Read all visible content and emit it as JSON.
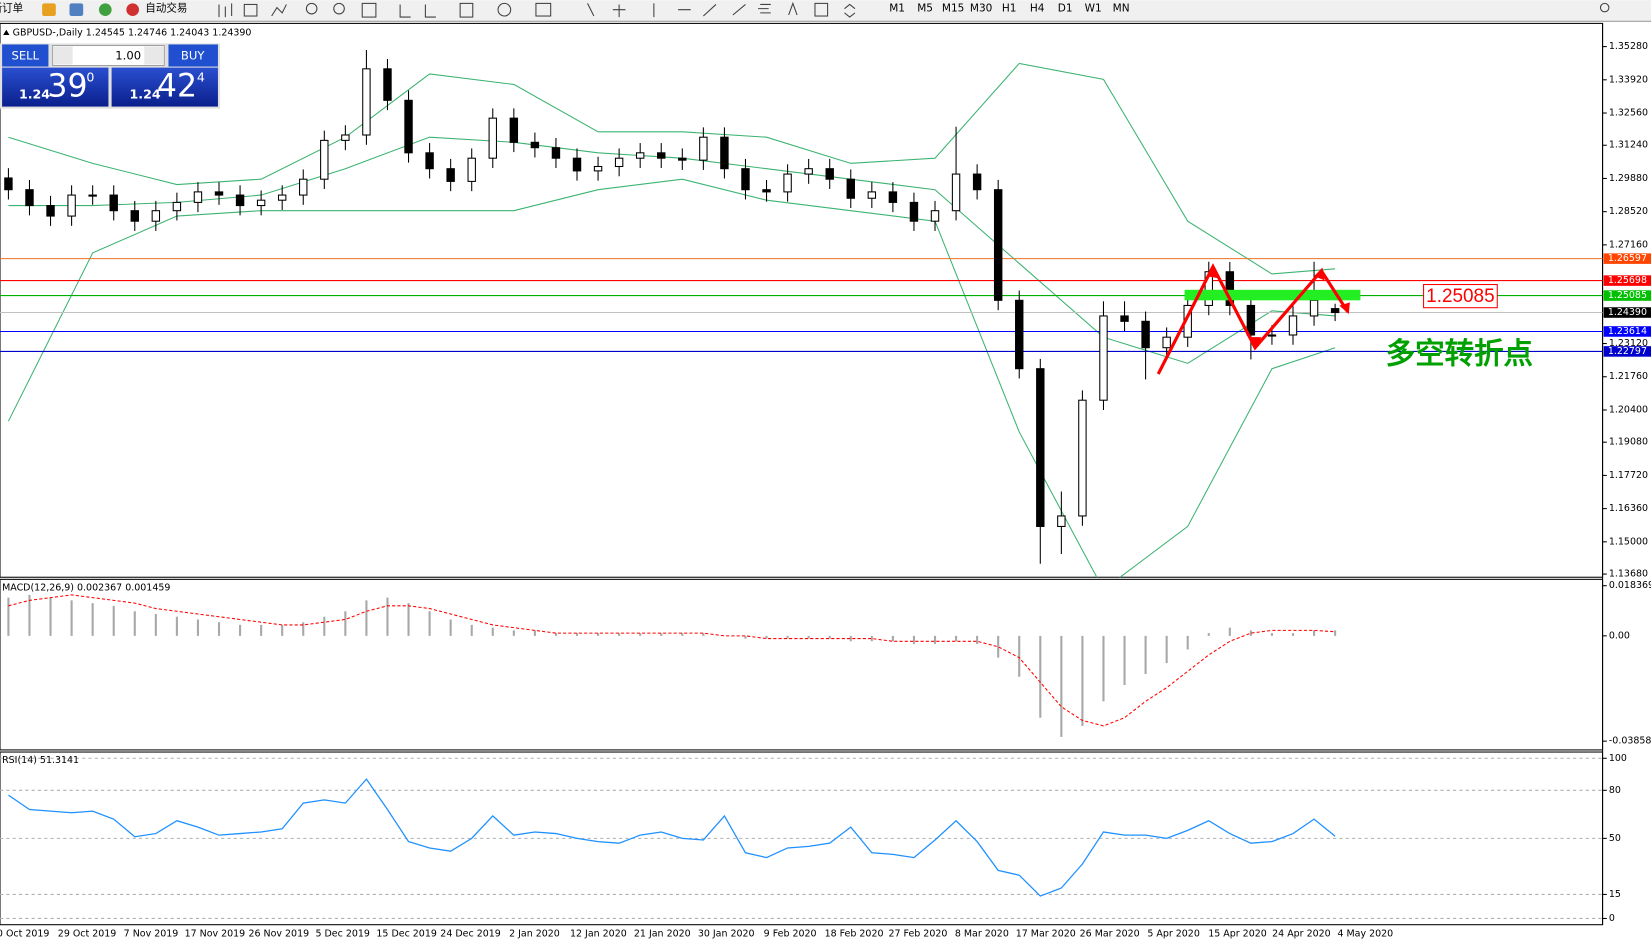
{
  "toolbar": {
    "items": [
      "新订单",
      "自动交易"
    ],
    "timeframes": [
      "M1",
      "M5",
      "M15",
      "M30",
      "H1",
      "H4",
      "D1",
      "W1",
      "MN"
    ]
  },
  "trade_panel": {
    "sell_label": "SELL",
    "lot": "1.00",
    "buy_label": "BUY",
    "sell_price": {
      "big": "1.24",
      "pips": "39",
      "point": "0"
    },
    "buy_price": {
      "big": "1.24",
      "pips": "42",
      "point": "4"
    }
  },
  "chart_data": [
    {
      "type": "candlestick",
      "title": "GBPUSD-,Daily  1.24545 1.24746 1.24043 1.24390",
      "open": [
        1.299,
        1.2942,
        1.2877,
        1.2834,
        1.292,
        1.292,
        1.2856,
        1.2813,
        1.2856,
        1.289,
        1.2933,
        1.292,
        1.2877,
        1.2899,
        1.292,
        1.2985,
        1.3144,
        1.3166,
        1.3437,
        1.3308,
        1.3093,
        1.3028,
        1.2976,
        1.3071,
        1.3235,
        1.3136,
        1.3114,
        1.3071,
        1.3019,
        1.3037,
        1.3071,
        1.3093,
        1.3071,
        1.3063,
        1.3157,
        1.3028,
        1.2942,
        1.2933,
        1.3006,
        1.3028,
        1.2985,
        1.2907,
        1.2933,
        1.289,
        1.2813,
        1.2856,
        1.3006,
        1.2942,
        1.2489,
        1.2209,
        1.1563,
        1.1606,
        1.208,
        1.2425,
        1.2403,
        1.2295,
        1.2338,
        1.2468,
        1.2606,
        1.2468,
        1.2347,
        1.2347,
        1.2425,
        1.2455
      ],
      "high": [
        1.303,
        1.2982,
        1.2917,
        1.296,
        1.296,
        1.296,
        1.2896,
        1.2896,
        1.293,
        1.2973,
        1.2973,
        1.296,
        1.2939,
        1.296,
        1.3025,
        1.3184,
        1.3206,
        1.3514,
        1.3477,
        1.3348,
        1.3133,
        1.3068,
        1.3111,
        1.3275,
        1.3275,
        1.3176,
        1.3154,
        1.3111,
        1.3077,
        1.3111,
        1.3133,
        1.3133,
        1.3111,
        1.3197,
        1.3197,
        1.3068,
        1.2982,
        1.3046,
        1.3068,
        1.3068,
        1.3025,
        1.2973,
        1.2973,
        1.293,
        1.2896,
        1.32,
        1.3046,
        1.2982,
        1.2529,
        1.2249,
        1.1706,
        1.212,
        1.2485,
        1.2485,
        1.2443,
        1.2378,
        1.2508,
        1.2647,
        1.2646,
        1.2508,
        1.2387,
        1.2465,
        1.2647,
        1.2475
      ],
      "low": [
        1.2902,
        1.2837,
        1.2794,
        1.2794,
        1.288,
        1.2816,
        1.2773,
        1.2773,
        1.2816,
        1.285,
        1.288,
        1.2837,
        1.2837,
        1.2859,
        1.288,
        1.2945,
        1.3104,
        1.3126,
        1.3268,
        1.3053,
        1.2988,
        1.2936,
        1.2936,
        1.3031,
        1.3096,
        1.3074,
        1.3031,
        1.2979,
        1.2979,
        1.2997,
        1.3031,
        1.3031,
        1.3023,
        1.3023,
        1.2988,
        1.2902,
        1.2893,
        1.2893,
        1.2966,
        1.2945,
        1.2867,
        1.2867,
        1.285,
        1.2773,
        1.2773,
        1.2816,
        1.2902,
        1.2449,
        1.2169,
        1.141,
        1.145,
        1.1566,
        1.204,
        1.2363,
        1.2165,
        1.2255,
        1.2298,
        1.2428,
        1.2428,
        1.2247,
        1.2307,
        1.2307,
        1.2385,
        1.2404
      ],
      "close": [
        1.2942,
        1.2877,
        1.2834,
        1.292,
        1.292,
        1.2856,
        1.2813,
        1.2856,
        1.289,
        1.2933,
        1.292,
        1.2877,
        1.2899,
        1.292,
        1.2985,
        1.3144,
        1.3166,
        1.3437,
        1.3308,
        1.3093,
        1.3028,
        1.2976,
        1.3071,
        1.3235,
        1.3136,
        1.3114,
        1.3071,
        1.3019,
        1.3037,
        1.3071,
        1.3093,
        1.3071,
        1.3063,
        1.3157,
        1.3028,
        1.2942,
        1.2933,
        1.3006,
        1.3028,
        1.2985,
        1.2907,
        1.2933,
        1.289,
        1.2813,
        1.2856,
        1.3006,
        1.2942,
        1.2489,
        1.2209,
        1.1563,
        1.1606,
        1.208,
        1.2425,
        1.2403,
        1.2295,
        1.2338,
        1.2468,
        1.2606,
        1.2468,
        1.2347,
        1.2347,
        1.2425,
        1.2489,
        1.2439
      ],
      "up_color": "#ffffff",
      "down_color": "#000000",
      "bands": {
        "color": "#3cb371",
        "x": [
          0,
          4,
          8,
          12,
          16,
          20,
          24,
          28,
          32,
          36,
          40,
          44,
          48,
          52,
          56,
          60,
          63
        ],
        "upper": [
          1.3157,
          1.305,
          1.2963,
          1.2985,
          1.3157,
          1.3416,
          1.3373,
          1.3179,
          1.3179,
          1.3157,
          1.305,
          1.3071,
          1.3459,
          1.3394,
          1.2813,
          1.2597,
          1.2618
        ],
        "middle": [
          1.2877,
          1.2877,
          1.289,
          1.292,
          1.3028,
          1.3157,
          1.3136,
          1.3093,
          1.3071,
          1.3028,
          1.2985,
          1.2942,
          1.264,
          1.2338,
          1.2231,
          1.2446,
          1.2425
        ],
        "lower": [
          1.1994,
          1.2683,
          1.2834,
          1.2856,
          1.2856,
          1.2856,
          1.2856,
          1.2942,
          1.2985,
          1.2899,
          1.2856,
          1.2813,
          1.195,
          1.1304,
          1.1563,
          1.2209,
          1.2295
        ]
      },
      "ylim": [
        1.1355,
        1.3623
      ],
      "yticks": [
        {
          "value": 1.3528,
          "label": "1.35280"
        },
        {
          "value": 1.3392,
          "label": "1.33920"
        },
        {
          "value": 1.3256,
          "label": "1.32560"
        },
        {
          "value": 1.3124,
          "label": "1.31240"
        },
        {
          "value": 1.2988,
          "label": "1.29880"
        },
        {
          "value": 1.2852,
          "label": "1.28520"
        },
        {
          "value": 1.2716,
          "label": "1.27160"
        },
        {
          "value": 1.2312,
          "label": "1.23120"
        },
        {
          "value": 1.2176,
          "label": "1.21760"
        },
        {
          "value": 1.204,
          "label": "1.20400"
        },
        {
          "value": 1.1908,
          "label": "1.19080"
        },
        {
          "value": 1.1772,
          "label": "1.17720"
        },
        {
          "value": 1.1636,
          "label": "1.16360"
        },
        {
          "value": 1.15,
          "label": "1.15000"
        },
        {
          "value": 1.1368,
          "label": "1.13680"
        }
      ],
      "hlines": [
        {
          "value": 1.26597,
          "label": "1.26597",
          "color": "#f07028",
          "label_bg": "#ff4500"
        },
        {
          "value": 1.25698,
          "label": "1.25698",
          "color": "#ff0000",
          "label_bg": "#ff0000"
        },
        {
          "value": 1.25085,
          "label": "1.25085",
          "color": "#00b000",
          "label_bg": "#00c000"
        },
        {
          "value": 1.2439,
          "label": "1.24390",
          "color": "#c0c0c0",
          "label_bg": "#000000"
        },
        {
          "value": 1.23614,
          "label": "1.23614",
          "color": "#0000ff",
          "label_bg": "#0000ff"
        },
        {
          "value": 1.22797,
          "label": "1.22797",
          "color": "#0000cc",
          "label_bg": "#0000cc"
        }
      ],
      "annotations": [
        "1.25085",
        "多空转折点"
      ],
      "date_labels": [
        "0 Oct 2019",
        "29 Oct 2019",
        "7 Nov 2019",
        "17 Nov 2019",
        "26 Nov 2019",
        "5 Dec 2019",
        "15 Dec 2019",
        "24 Dec 2019",
        "2 Jan 2020",
        "12 Jan 2020",
        "21 Jan 2020",
        "30 Jan 2020",
        "9 Feb 2020",
        "18 Feb 2020",
        "27 Feb 2020",
        "8 Mar 2020",
        "17 Mar 2020",
        "26 Mar 2020",
        "5 Apr 2020",
        "15 Apr 2020",
        "24 Apr 2020",
        "4 May 2020"
      ]
    },
    {
      "type": "macd",
      "title": "MACD(12,26,9) 0.002367 0.001459",
      "values": [
        0.014,
        0.015,
        0.014,
        0.013,
        0.012,
        0.011,
        0.009,
        0.008,
        0.007,
        0.006,
        0.005,
        0.004,
        0.004,
        0.004,
        0.005,
        0.007,
        0.009,
        0.013,
        0.014,
        0.012,
        0.009,
        0.006,
        0.004,
        0.003,
        0.002,
        0.002,
        0.001,
        0.001,
        0.001,
        0.001,
        0.001,
        0.001,
        0.001,
        0.001,
        0,
        -0.001,
        -0.001,
        -0.001,
        -0.001,
        -0.001,
        -0.002,
        -0.002,
        -0.002,
        -0.003,
        -0.003,
        -0.002,
        -0.003,
        -0.008,
        -0.015,
        -0.03,
        -0.037,
        -0.033,
        -0.024,
        -0.018,
        -0.014,
        -0.01,
        -0.005,
        0.001,
        0.003,
        0.002,
        0.001,
        0.001,
        0.002,
        0.002
      ],
      "signal": [
        0.011,
        0.013,
        0.014,
        0.015,
        0.014,
        0.013,
        0.012,
        0.01,
        0.009,
        0.008,
        0.007,
        0.006,
        0.005,
        0.004,
        0.004,
        0.005,
        0.006,
        0.009,
        0.011,
        0.011,
        0.01,
        0.008,
        0.006,
        0.004,
        0.003,
        0.002,
        0.001,
        0.001,
        0.001,
        0.001,
        0.001,
        0.001,
        0.001,
        0.001,
        0,
        0,
        -0.001,
        -0.001,
        -0.001,
        -0.001,
        -0.001,
        -0.001,
        -0.002,
        -0.002,
        -0.002,
        -0.002,
        -0.002,
        -0.004,
        -0.008,
        -0.017,
        -0.026,
        -0.031,
        -0.033,
        -0.03,
        -0.024,
        -0.019,
        -0.013,
        -0.007,
        -0.002,
        0.001,
        0.002,
        0.002,
        0.002,
        0.0015
      ],
      "color": "#a8a8a8",
      "signal_color": "#ff0000",
      "ylim": [
        -0.0418,
        0.0207
      ],
      "yticks": [
        {
          "value": 0.018369,
          "label": "0.018369"
        },
        {
          "value": 0,
          "label": "0.00"
        },
        {
          "value": -0.038585,
          "label": "-0.038585"
        }
      ]
    },
    {
      "type": "line",
      "title": "RSI(14) 51.3141",
      "values": [
        77,
        68,
        67,
        66,
        67,
        62,
        51,
        53,
        61,
        57,
        52,
        53,
        54,
        56,
        72,
        74,
        72,
        87,
        68,
        48,
        44,
        42,
        50,
        64,
        52,
        54,
        53,
        50,
        48,
        47,
        52,
        54,
        50,
        49,
        64,
        41,
        38,
        44,
        45,
        47,
        57,
        41,
        40,
        38,
        49,
        61,
        48,
        30,
        27,
        14,
        19,
        34,
        54,
        52,
        52,
        50,
        55,
        61,
        53,
        47,
        48,
        53,
        62,
        51.3141
      ],
      "color": "#1e90ff",
      "ylim": [
        -3.9,
        103.9
      ],
      "yticks": [
        100,
        80,
        50,
        15,
        0
      ],
      "grid": "dashed"
    }
  ]
}
